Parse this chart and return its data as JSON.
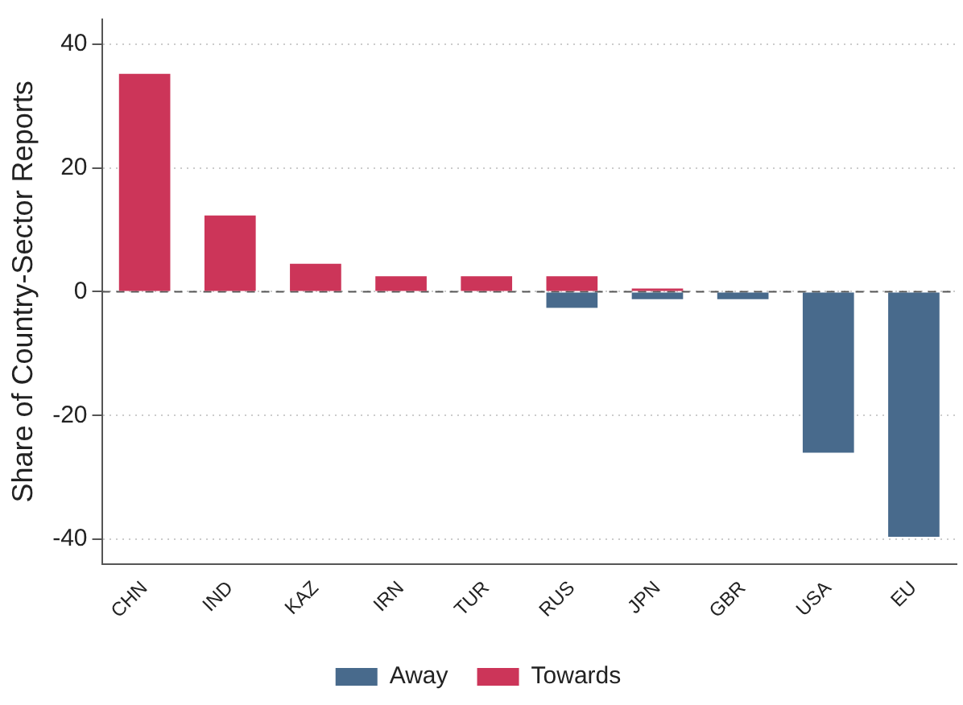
{
  "chart_data": {
    "type": "bar",
    "ylabel": "Share of Country-Sector Reports",
    "categories": [
      "CHN",
      "IND",
      "KAZ",
      "IRN",
      "TUR",
      "RUS",
      "JPN",
      "GBR",
      "USA",
      "EU"
    ],
    "series": [
      {
        "name": "Away",
        "color": "#486a8c",
        "values": [
          null,
          null,
          null,
          null,
          null,
          -2.6,
          -1.2,
          -1.2,
          -26,
          -39.6
        ]
      },
      {
        "name": "Towards",
        "color": "#cc3559",
        "values": [
          35.2,
          12.3,
          4.5,
          2.5,
          2.5,
          2.5,
          0.5,
          null,
          null,
          null
        ]
      }
    ],
    "stacked": true,
    "ylim": [
      -44,
      44
    ],
    "yticks": [
      -40,
      -20,
      0,
      20,
      40
    ],
    "grid": "y",
    "legend": "bottom",
    "ref_lines": [
      {
        "axis": "y",
        "value": 0,
        "color": "#555555",
        "line_style": "dashed"
      }
    ]
  }
}
